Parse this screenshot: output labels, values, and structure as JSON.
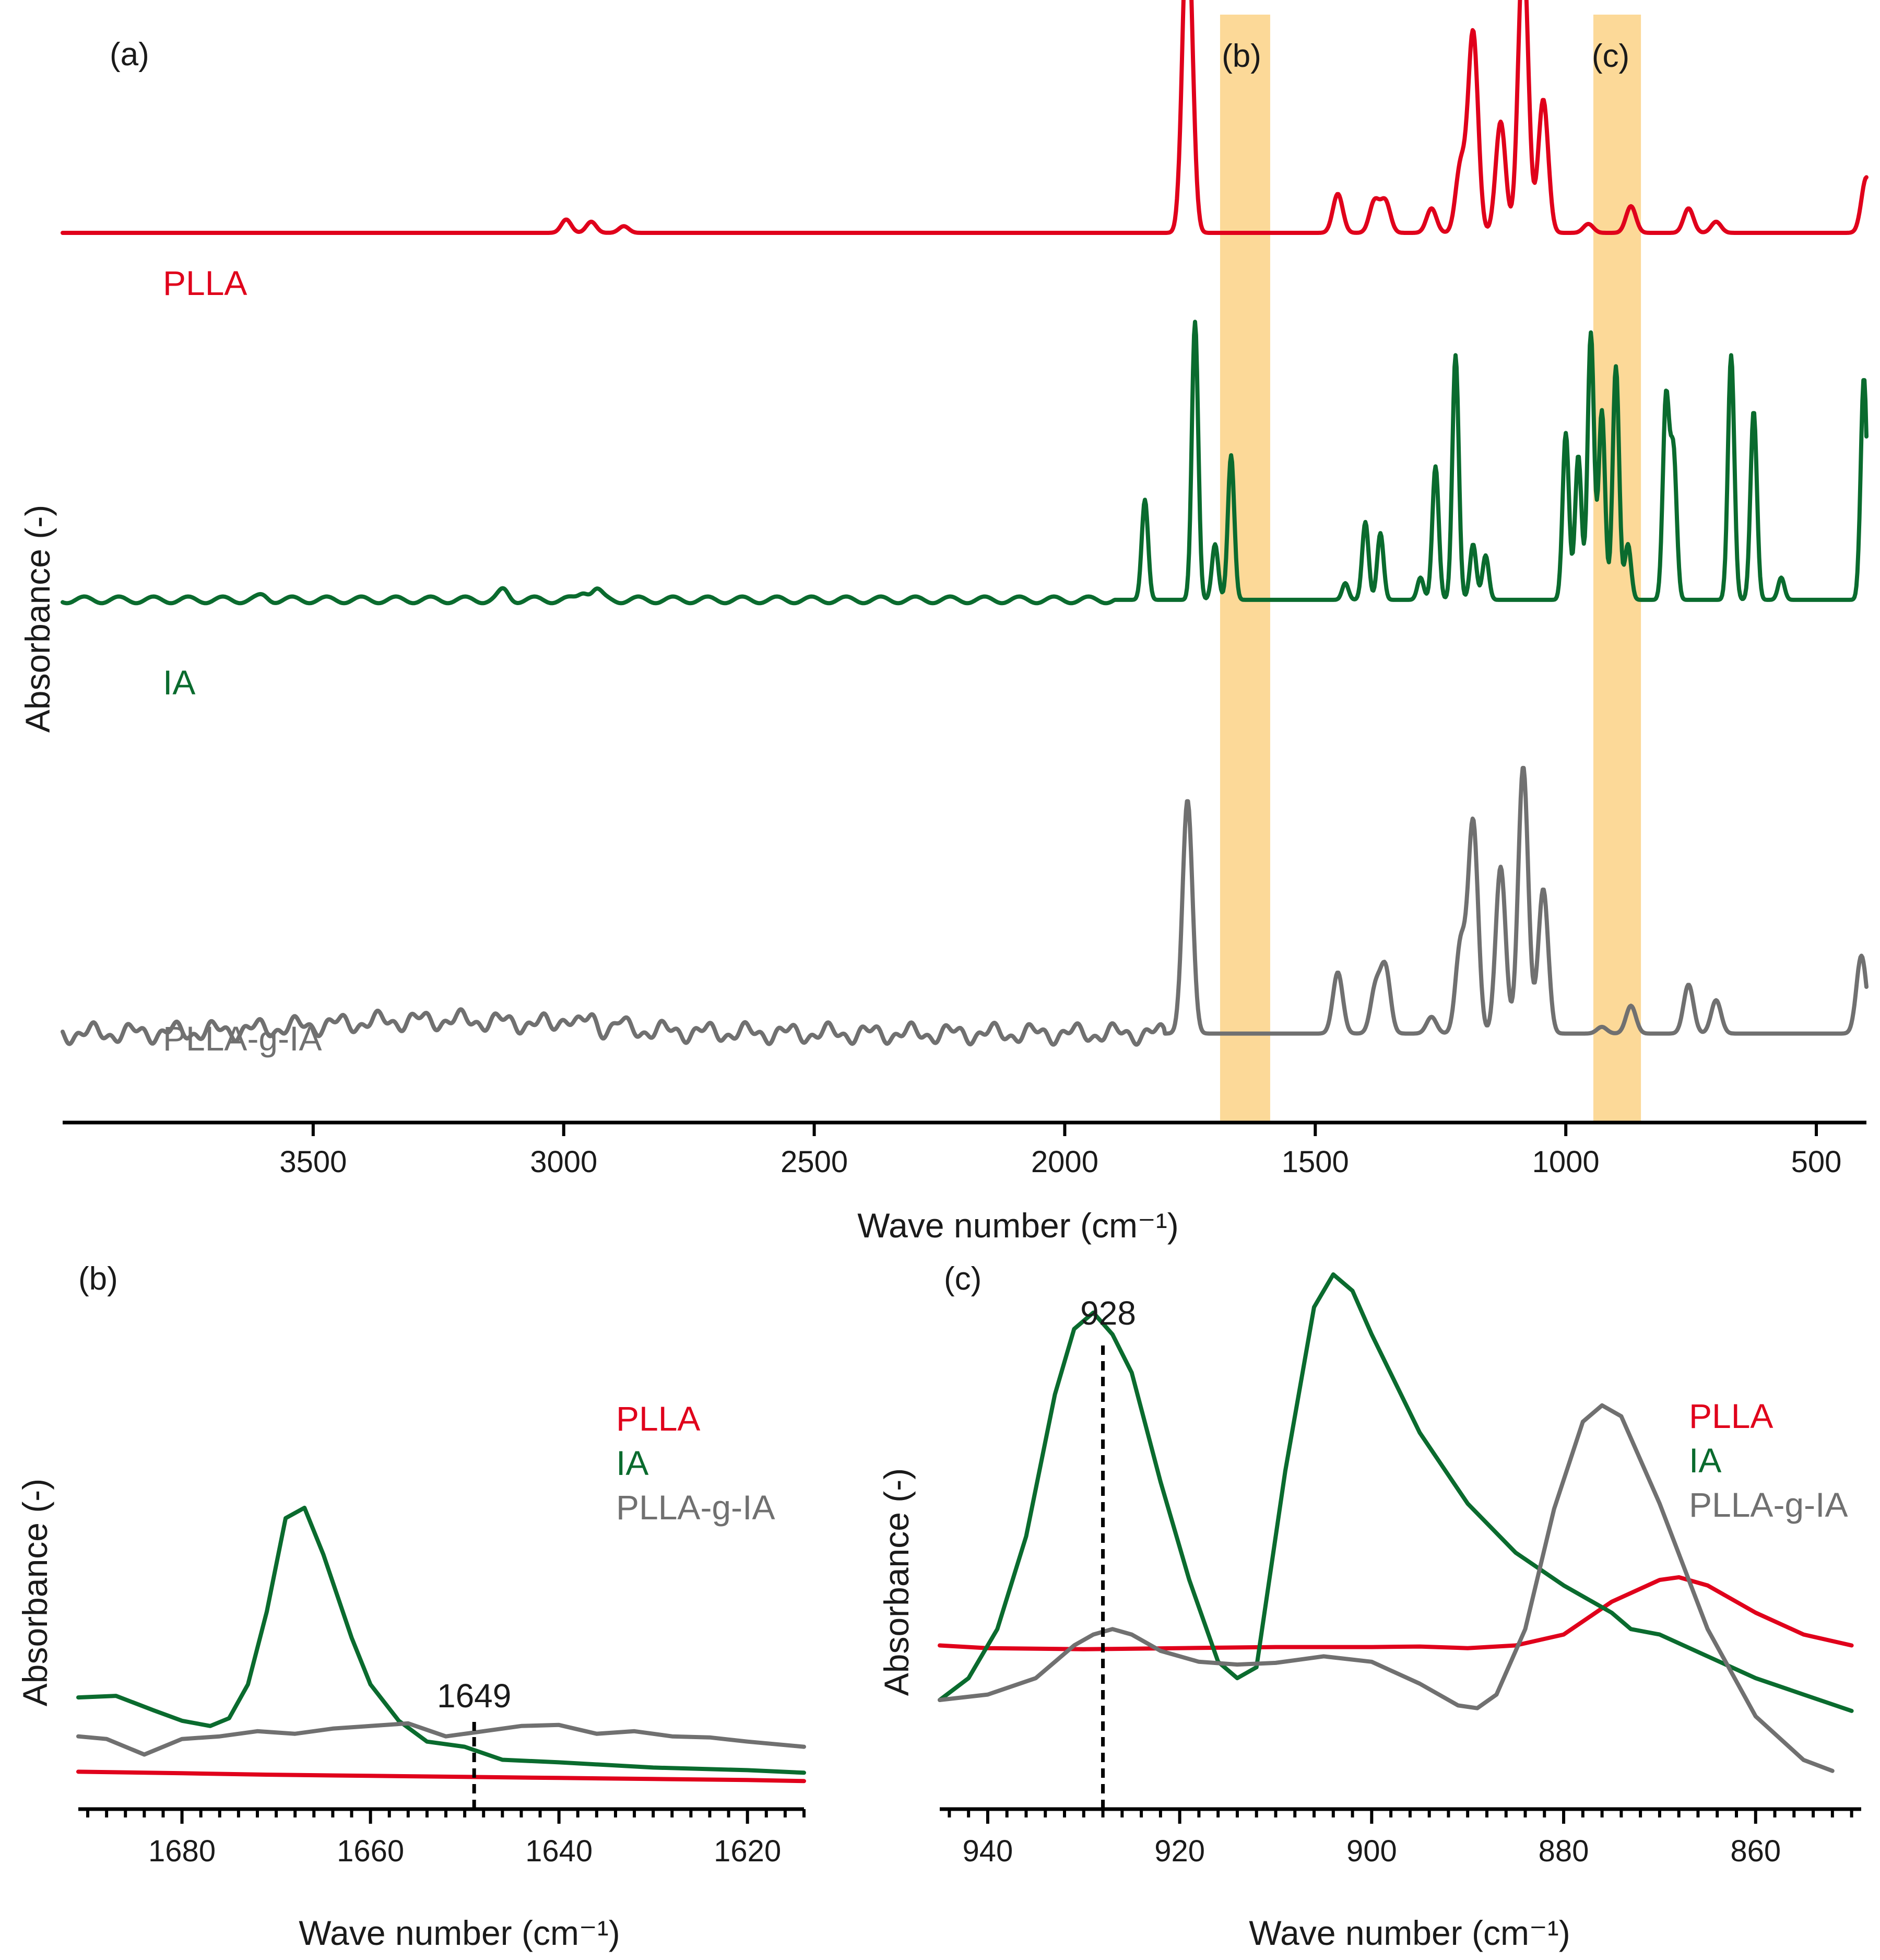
{
  "colors": {
    "PLLA": "#e0001b",
    "IA": "#0a6b2e",
    "PLLA-g-IA": "#707070",
    "highlight": "#fbd286"
  },
  "chart_data": [
    {
      "panel": "(a)",
      "type": "line",
      "xlabel": "Wave number (cm⁻¹)",
      "ylabel": "Absorbance (-)",
      "xlim": [
        4000,
        400
      ],
      "x_reversed": true,
      "xticks": [
        3500,
        3000,
        2500,
        2000,
        1500,
        1000,
        500
      ],
      "highlight_regions": [
        {
          "label": "(b)",
          "range": [
            1690,
            1590
          ]
        },
        {
          "label": "(c)",
          "range": [
            945,
            850
          ]
        }
      ],
      "baseline": {
        "PLLA": 0.8,
        "IA": 0.47,
        "PLLA-g-IA": 0.08
      },
      "series": [
        {
          "name": "PLLA",
          "label": "PLLA",
          "peaks": [
            [
              2995,
              0.012
            ],
            [
              2945,
              0.01
            ],
            [
              2880,
              0.006
            ],
            [
              1755,
              0.29
            ],
            [
              1455,
              0.035
            ],
            [
              1382,
              0.028
            ],
            [
              1360,
              0.028
            ],
            [
              1268,
              0.022
            ],
            [
              1210,
              0.06
            ],
            [
              1185,
              0.18
            ],
            [
              1130,
              0.1
            ],
            [
              1085,
              0.26
            ],
            [
              1045,
              0.12
            ],
            [
              955,
              0.008
            ],
            [
              870,
              0.024
            ],
            [
              755,
              0.022
            ],
            [
              700,
              0.01
            ],
            [
              400,
              0.05
            ]
          ]
        },
        {
          "name": "IA",
          "label": "IA",
          "peaks": [
            [
              3600,
              0.003
            ],
            [
              3120,
              0.008
            ],
            [
              2960,
              0.008
            ],
            [
              2935,
              0.009
            ],
            [
              1840,
              0.09
            ],
            [
              1740,
              0.25
            ],
            [
              1700,
              0.05
            ],
            [
              1668,
              0.13
            ],
            [
              1440,
              0.015
            ],
            [
              1400,
              0.07
            ],
            [
              1370,
              0.06
            ],
            [
              1290,
              0.02
            ],
            [
              1260,
              0.12
            ],
            [
              1220,
              0.22
            ],
            [
              1185,
              0.05
            ],
            [
              1160,
              0.04
            ],
            [
              1000,
              0.15
            ],
            [
              975,
              0.13
            ],
            [
              950,
              0.24
            ],
            [
              928,
              0.17
            ],
            [
              900,
              0.21
            ],
            [
              876,
              0.05
            ],
            [
              800,
              0.18
            ],
            [
              785,
              0.13
            ],
            [
              670,
              0.22
            ],
            [
              625,
              0.17
            ],
            [
              570,
              0.02
            ],
            [
              405,
              0.2
            ]
          ]
        },
        {
          "name": "PLLA-g-IA",
          "label": "PLLA-g-IA",
          "peaks": [
            [
              2995,
              0.01
            ],
            [
              2945,
              0.008
            ],
            [
              2890,
              0.005
            ],
            [
              1755,
              0.21
            ],
            [
              1455,
              0.055
            ],
            [
              1380,
              0.04
            ],
            [
              1360,
              0.058
            ],
            [
              1268,
              0.015
            ],
            [
              1210,
              0.08
            ],
            [
              1185,
              0.19
            ],
            [
              1130,
              0.15
            ],
            [
              1085,
              0.24
            ],
            [
              1045,
              0.13
            ],
            [
              928,
              0.006
            ],
            [
              870,
              0.025
            ],
            [
              755,
              0.044
            ],
            [
              700,
              0.03
            ],
            [
              410,
              0.07
            ]
          ]
        }
      ]
    },
    {
      "panel": "(b)",
      "type": "line",
      "xlabel": "Wave number (cm⁻¹)",
      "ylabel": "Absorbance (-)",
      "xlim": [
        1691,
        1614
      ],
      "x_reversed": true,
      "ylim": [
        0,
        1
      ],
      "xticks": [
        1680,
        1660,
        1640,
        1620
      ],
      "marker": {
        "x": 1649,
        "label": "1649"
      },
      "legend": [
        "PLLA",
        "IA",
        "PLLA-g-IA"
      ],
      "series": [
        {
          "name": "PLLA",
          "x": [
            1691,
            1680,
            1670,
            1660,
            1650,
            1640,
            1630,
            1620,
            1614
          ],
          "y": [
            0.072,
            0.069,
            0.066,
            0.064,
            0.062,
            0.06,
            0.058,
            0.056,
            0.054
          ]
        },
        {
          "name": "IA",
          "x": [
            1691,
            1687,
            1683,
            1680,
            1677,
            1675,
            1673,
            1671,
            1669,
            1667,
            1665,
            1662,
            1660,
            1657,
            1654,
            1650,
            1646,
            1640,
            1630,
            1620,
            1614
          ],
          "y": [
            0.215,
            0.218,
            0.19,
            0.17,
            0.16,
            0.175,
            0.24,
            0.38,
            0.56,
            0.58,
            0.49,
            0.33,
            0.24,
            0.17,
            0.13,
            0.12,
            0.095,
            0.09,
            0.08,
            0.075,
            0.07
          ]
        },
        {
          "name": "PLLA-g-IA",
          "x": [
            1691,
            1688,
            1684,
            1680,
            1676,
            1672,
            1668,
            1664,
            1660,
            1656,
            1652,
            1648,
            1644,
            1640,
            1636,
            1632,
            1628,
            1624,
            1620,
            1614
          ],
          "y": [
            0.14,
            0.135,
            0.105,
            0.135,
            0.14,
            0.15,
            0.145,
            0.155,
            0.16,
            0.165,
            0.14,
            0.15,
            0.16,
            0.162,
            0.145,
            0.15,
            0.14,
            0.138,
            0.13,
            0.12
          ]
        }
      ]
    },
    {
      "panel": "(c)",
      "type": "line",
      "xlabel": "Wave number (cm⁻¹)",
      "ylabel": "Absorbance (-)",
      "xlim": [
        945,
        849
      ],
      "x_reversed": true,
      "ylim": [
        0,
        1
      ],
      "xticks": [
        940,
        920,
        900,
        880,
        860
      ],
      "marker": {
        "x": 928,
        "label": "928"
      },
      "legend": [
        "PLLA",
        "IA",
        "PLLA-g-IA"
      ],
      "series": [
        {
          "name": "PLLA",
          "x": [
            945,
            940,
            930,
            920,
            910,
            900,
            895,
            890,
            885,
            880,
            875,
            870,
            868,
            865,
            860,
            855,
            850
          ],
          "y": [
            0.3,
            0.295,
            0.293,
            0.295,
            0.297,
            0.297,
            0.298,
            0.295,
            0.3,
            0.32,
            0.38,
            0.42,
            0.425,
            0.41,
            0.36,
            0.32,
            0.3
          ]
        },
        {
          "name": "IA",
          "x": [
            945,
            942,
            939,
            936,
            933,
            931,
            929,
            927,
            925,
            922,
            919,
            916,
            914,
            912,
            911,
            909,
            906,
            904,
            902,
            900,
            895,
            890,
            885,
            880,
            875,
            873,
            870,
            865,
            860,
            855,
            850
          ],
          "y": [
            0.2,
            0.24,
            0.33,
            0.5,
            0.76,
            0.88,
            0.91,
            0.87,
            0.8,
            0.6,
            0.42,
            0.27,
            0.24,
            0.26,
            0.38,
            0.62,
            0.92,
            0.98,
            0.95,
            0.87,
            0.69,
            0.56,
            0.47,
            0.41,
            0.36,
            0.33,
            0.32,
            0.28,
            0.24,
            0.21,
            0.18
          ]
        },
        {
          "name": "PLLA-g-IA",
          "x": [
            945,
            940,
            935,
            931,
            929,
            927,
            925,
            922,
            918,
            914,
            910,
            905,
            900,
            895,
            891,
            889,
            887,
            884,
            881,
            878,
            876,
            874,
            870,
            865,
            860,
            855,
            852
          ],
          "y": [
            0.2,
            0.21,
            0.24,
            0.3,
            0.32,
            0.33,
            0.32,
            0.29,
            0.27,
            0.265,
            0.268,
            0.28,
            0.27,
            0.23,
            0.19,
            0.185,
            0.21,
            0.33,
            0.55,
            0.71,
            0.74,
            0.72,
            0.56,
            0.33,
            0.17,
            0.09,
            0.07
          ]
        }
      ]
    }
  ]
}
